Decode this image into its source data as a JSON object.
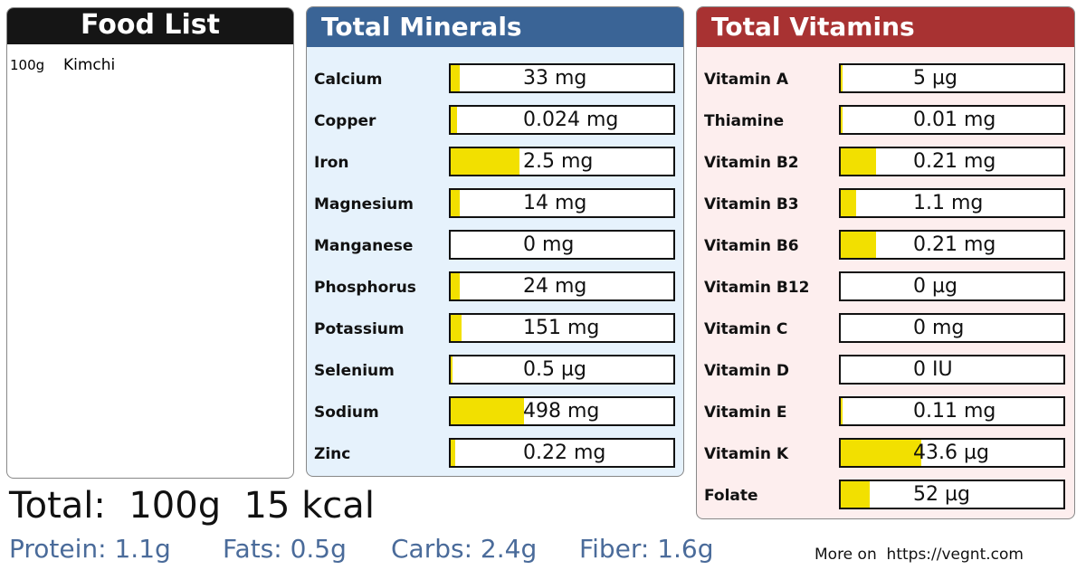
{
  "food_list": {
    "title": "Food List",
    "items": [
      {
        "amount": "100g",
        "name": "Kimchi"
      }
    ]
  },
  "minerals": {
    "title": "Total Minerals",
    "rows": [
      {
        "name": "Calcium",
        "amount": "33 mg",
        "fill": 0.04
      },
      {
        "name": "Copper",
        "amount": "0.024 mg",
        "fill": 0.03
      },
      {
        "name": "Iron",
        "amount": "2.5 mg",
        "fill": 0.31
      },
      {
        "name": "Magnesium",
        "amount": "14 mg",
        "fill": 0.04
      },
      {
        "name": "Manganese",
        "amount": "0 mg",
        "fill": 0
      },
      {
        "name": "Phosphorus",
        "amount": "24 mg",
        "fill": 0.04
      },
      {
        "name": "Potassium",
        "amount": "151 mg",
        "fill": 0.05
      },
      {
        "name": "Selenium",
        "amount": "0.5 µg",
        "fill": 0.01
      },
      {
        "name": "Sodium",
        "amount": "498 mg",
        "fill": 0.33
      },
      {
        "name": "Zinc",
        "amount": "0.22 mg",
        "fill": 0.02
      }
    ]
  },
  "vitamins": {
    "title": "Total Vitamins",
    "rows": [
      {
        "name": "Vitamin A",
        "amount": "5 µg",
        "fill": 0.01
      },
      {
        "name": "Thiamine",
        "amount": "0.01 mg",
        "fill": 0.01
      },
      {
        "name": "Vitamin B2",
        "amount": "0.21 mg",
        "fill": 0.16
      },
      {
        "name": "Vitamin B3",
        "amount": "1.1 mg",
        "fill": 0.07
      },
      {
        "name": "Vitamin B6",
        "amount": "0.21 mg",
        "fill": 0.16
      },
      {
        "name": "Vitamin B12",
        "amount": "0 µg",
        "fill": 0
      },
      {
        "name": "Vitamin C",
        "amount": "0 mg",
        "fill": 0
      },
      {
        "name": "Vitamin D",
        "amount": "0 IU",
        "fill": 0
      },
      {
        "name": "Vitamin E",
        "amount": "0.11 mg",
        "fill": 0.01
      },
      {
        "name": "Vitamin K",
        "amount": "43.6 µg",
        "fill": 0.36
      },
      {
        "name": "Folate",
        "amount": "52 µg",
        "fill": 0.13
      }
    ]
  },
  "totals": {
    "label": "Total:",
    "weight": "100g",
    "energy": "15 kcal"
  },
  "macros": [
    "Protein: 1.1g",
    "Fats: 0.5g",
    "Carbs: 2.4g",
    "Fiber: 1.6g"
  ],
  "footer": {
    "prefix": "More on",
    "url": "https://vegnt.com"
  }
}
